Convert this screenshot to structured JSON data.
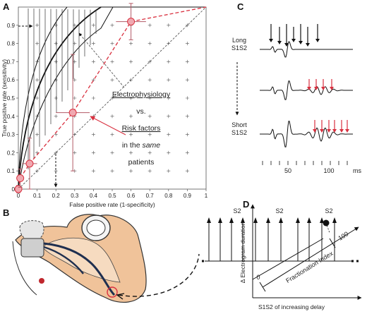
{
  "panels": {
    "a": {
      "label": "A",
      "y_axis_label": "True positive rate (sensitivity)",
      "x_axis_label": "False positive rate (1-specificity)",
      "x_ticks": [
        "0",
        "0.1",
        "0.2",
        "0.3",
        "0.4",
        "0.5",
        "0.6",
        "0.7",
        "0.8",
        "0.9",
        "1"
      ],
      "y_ticks": [
        "0",
        "0.1",
        "0.2",
        "0.3",
        "0.4",
        "0.5",
        "0.6",
        "0.7",
        "0.8",
        "0.9"
      ],
      "annotation": {
        "line1": "Electrophysiology",
        "line2": "vs.",
        "line3": "Risk factors",
        "line4_prefix": "in the ",
        "line4_emph": "same",
        "line5": "patients"
      },
      "colors": {
        "risk": "#d9303f",
        "risk_fill": "#f0a8b0",
        "ephys": "#111111"
      },
      "risk_points": [
        {
          "x": 0.0,
          "y": 0.0,
          "xerr": 0.01,
          "yerr": 0.02
        },
        {
          "x": 0.01,
          "y": 0.06,
          "xerr": 0.02,
          "yerr": 0.05
        },
        {
          "x": 0.06,
          "y": 0.14,
          "xerr": 0.04,
          "yerr": 0.14
        },
        {
          "x": 0.29,
          "y": 0.42,
          "xerr": 0.09,
          "yerr": 0.32
        },
        {
          "x": 0.6,
          "y": 0.92,
          "xerr": 0.08,
          "yerr": 0.1
        }
      ]
    },
    "b": {
      "label": "B",
      "stim_labels": [
        "S2",
        "S2",
        "S2"
      ]
    },
    "c": {
      "label": "C",
      "top_label_line1": "Long",
      "top_label_line2": "S1S2",
      "bottom_label_line1": "Short",
      "bottom_label_line2": "S1S2",
      "time_ticks": [
        "50",
        "100"
      ],
      "time_unit": "ms"
    },
    "d": {
      "label": "D",
      "y_axis_label": "Δ Electrogram duration",
      "x_axis_label": "S1S2 of increasing delay",
      "index_label": "Fractionation Index",
      "index_start": "0",
      "index_end": "100"
    }
  }
}
